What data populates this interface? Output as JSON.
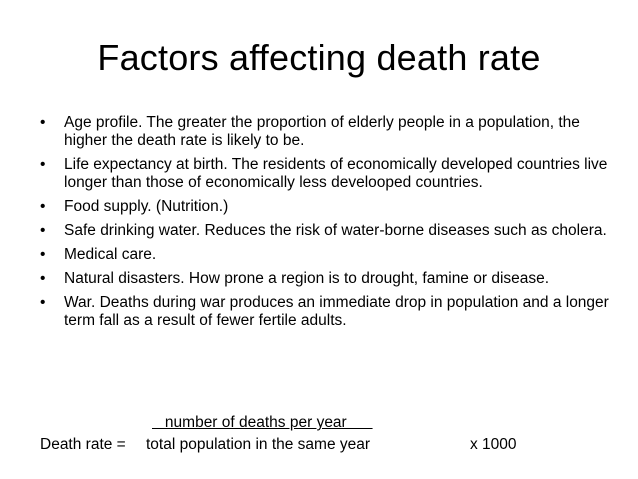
{
  "slide": {
    "title": "Factors affecting death rate",
    "bullets": [
      "Age profile. The greater the proportion of elderly people in a population, the higher the death rate is likely to be.",
      "Life expectancy at birth. The residents of economically developed countries live longer than those of economically less develooped countries.",
      "Food supply. (Nutrition.)",
      "Safe drinking water. Reduces the risk of water-borne diseases such as cholera.",
      "Medical care.",
      "Natural disasters. How prone a region is to drought, famine or disease.",
      "War. Deaths during war produces an immediate drop in population and a longer term fall as a result of fewer fertile adults."
    ],
    "bullet_symbol": "•",
    "formula": {
      "numerator": "   number of deaths per year      ",
      "lhs": "Death rate =",
      "denominator": "total population in the same year",
      "multiplier": "x  1000"
    }
  }
}
